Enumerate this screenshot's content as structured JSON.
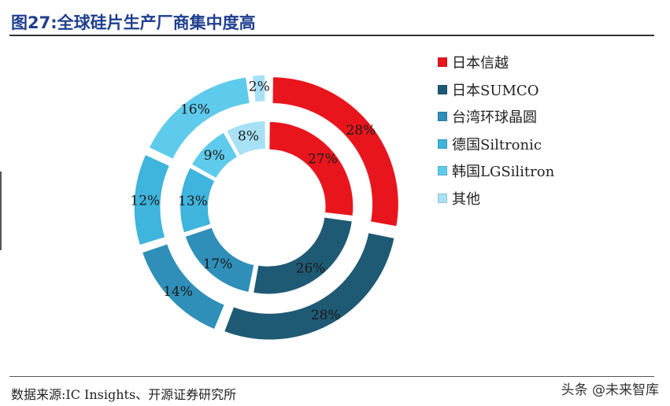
{
  "title": "图27:全球硅片生产厂商集中度高",
  "source": "数据来源:IC Insights、开源证券研究所",
  "watermark": "头条 @未来智库",
  "colors": [
    "#e8161c",
    "#1f5a75",
    "#2f8fb8",
    "#3fb4dc",
    "#5fcbec",
    "#a8e1f5"
  ],
  "chart_data": {
    "type": "pie",
    "subtype": "nested-donut",
    "legend": [
      "日本信越",
      "日本SUMCO",
      "台湾环球晶圆",
      "德国Siltronic",
      "韩国LGSilitron",
      "其他"
    ],
    "series": [
      {
        "ring": "outer",
        "values": [
          28,
          28,
          14,
          12,
          16,
          2
        ]
      },
      {
        "ring": "inner",
        "values": [
          27,
          26,
          17,
          13,
          9,
          8
        ]
      }
    ],
    "value_suffix": "%"
  }
}
